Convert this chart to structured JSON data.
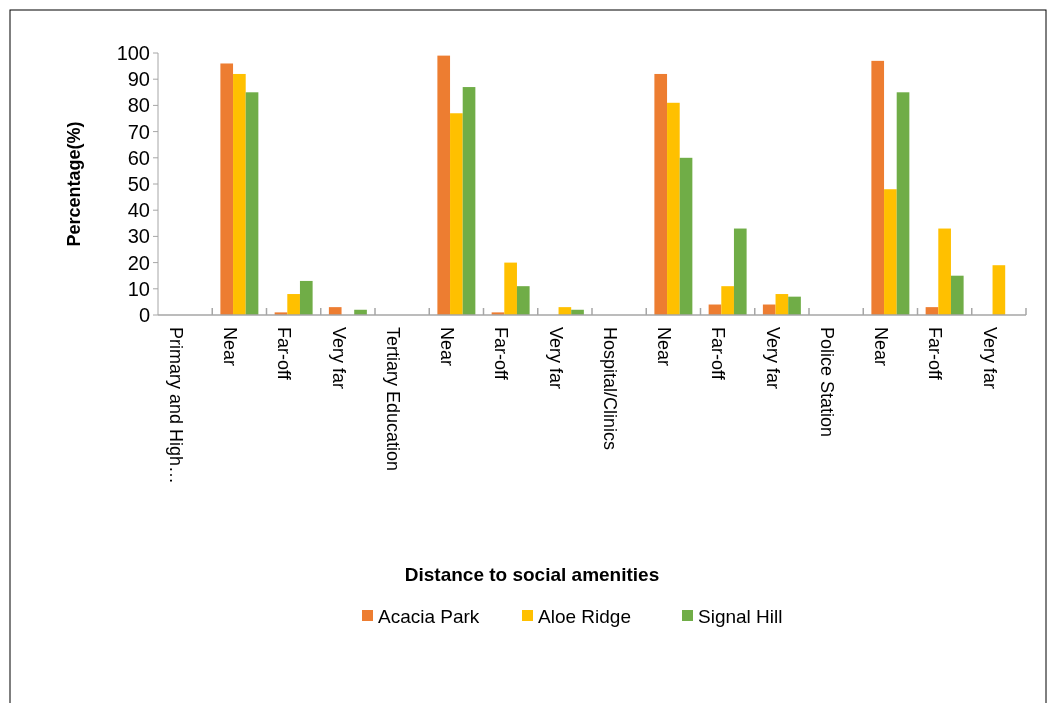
{
  "chart_data": {
    "type": "bar",
    "xlabel": "Distance to social amenities",
    "ylabel": "Percentage(%)",
    "categories": [
      "Primary and High…",
      "Near",
      "Far-off",
      "Very far",
      "Tertiary Education",
      "Near",
      "Far-off",
      "Very far",
      "Hospital/Clinics",
      "Near",
      "Far-off",
      "Very far",
      "Police Station",
      "Near",
      "Far-off",
      "Very far"
    ],
    "series": [
      {
        "name": "Acacia Park",
        "color": "#ed7d31",
        "values": [
          0,
          96,
          1,
          3,
          0,
          99,
          1,
          0,
          0,
          92,
          4,
          4,
          0,
          97,
          3,
          0
        ]
      },
      {
        "name": "Aloe Ridge",
        "color": "#ffc000",
        "values": [
          0,
          92,
          8,
          0,
          0,
          77,
          20,
          3,
          0,
          81,
          11,
          8,
          0,
          48,
          33,
          19
        ]
      },
      {
        "name": "Signal Hill",
        "color": "#70ad47",
        "values": [
          0,
          85,
          13,
          2,
          0,
          87,
          11,
          2,
          0,
          60,
          33,
          7,
          0,
          85,
          15,
          null
        ]
      }
    ],
    "ylim": [
      0,
      100
    ],
    "yticks": [
      0,
      10,
      20,
      30,
      40,
      50,
      60,
      70,
      80,
      90,
      100
    ],
    "grid": false,
    "legend": "bottom"
  }
}
